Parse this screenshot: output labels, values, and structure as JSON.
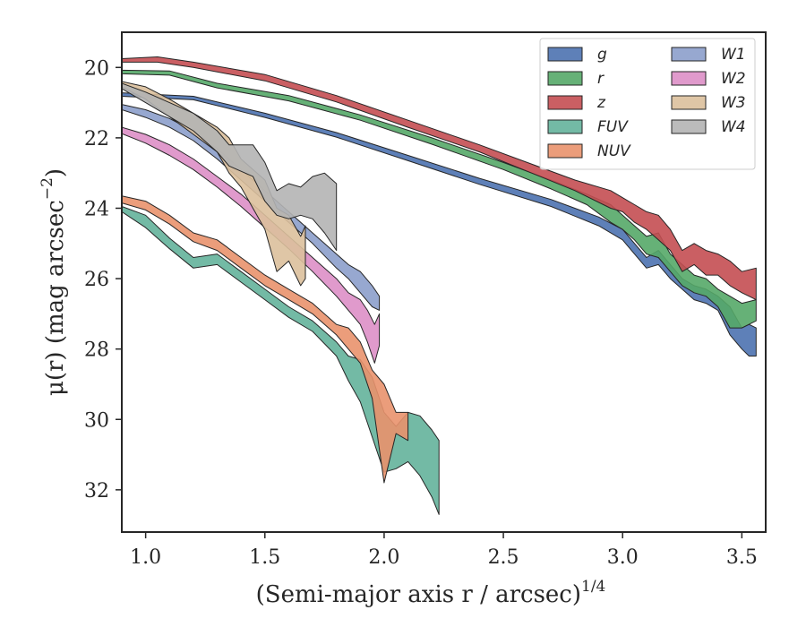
{
  "chart_data": {
    "type": "area",
    "title": "",
    "xlabel": "(Semi-major axis r / arcsec)",
    "xlabel_exponent": "1/4",
    "ylabel": "μ(r) (mag arcsec",
    "ylabel_exponent": "−2",
    "ylabel_close": ")",
    "xlim": [
      0.9,
      3.6
    ],
    "ylim": [
      33.2,
      19.0
    ],
    "y_inverted": true,
    "x_ticks": [
      1.0,
      1.5,
      2.0,
      2.5,
      3.0,
      3.5
    ],
    "x_tick_labels": [
      "1.0",
      "1.5",
      "2.0",
      "2.5",
      "3.0",
      "3.5"
    ],
    "y_ticks": [
      20,
      22,
      24,
      26,
      28,
      30,
      32
    ],
    "y_tick_labels": [
      "20",
      "22",
      "24",
      "26",
      "28",
      "30",
      "32"
    ],
    "grid": false,
    "legend_placement": "top-right",
    "legend_columns": 2,
    "series": [
      {
        "name": "g",
        "color": "#4c72b0",
        "points": [
          [
            0.9,
            20.72,
            20.82
          ],
          [
            1.2,
            20.82,
            20.92
          ],
          [
            1.5,
            21.3,
            21.42
          ],
          [
            1.8,
            21.85,
            21.98
          ],
          [
            2.1,
            22.5,
            22.65
          ],
          [
            2.4,
            23.15,
            23.32
          ],
          [
            2.7,
            23.75,
            23.95
          ],
          [
            2.9,
            24.25,
            24.5
          ],
          [
            3.0,
            24.6,
            24.9
          ],
          [
            3.05,
            25.0,
            25.3
          ],
          [
            3.1,
            25.4,
            25.7
          ],
          [
            3.15,
            25.2,
            25.6
          ],
          [
            3.2,
            25.6,
            26.0
          ],
          [
            3.25,
            26.0,
            26.3
          ],
          [
            3.3,
            26.2,
            26.6
          ],
          [
            3.35,
            26.3,
            26.7
          ],
          [
            3.4,
            26.5,
            26.9
          ],
          [
            3.45,
            26.8,
            27.6
          ],
          [
            3.5,
            27.4,
            28.0
          ],
          [
            3.53,
            27.3,
            28.2
          ],
          [
            3.56,
            27.4,
            28.2
          ]
        ]
      },
      {
        "name": "r",
        "color": "#55a868",
        "points": [
          [
            0.9,
            20.08,
            20.18
          ],
          [
            1.1,
            20.1,
            20.22
          ],
          [
            1.3,
            20.45,
            20.58
          ],
          [
            1.6,
            20.8,
            20.95
          ],
          [
            1.9,
            21.35,
            21.5
          ],
          [
            2.2,
            22.0,
            22.18
          ],
          [
            2.5,
            22.7,
            22.9
          ],
          [
            2.7,
            23.2,
            23.45
          ],
          [
            2.85,
            23.6,
            23.9
          ],
          [
            2.95,
            23.9,
            24.4
          ],
          [
            3.0,
            24.2,
            24.6
          ],
          [
            3.05,
            24.5,
            24.9
          ],
          [
            3.1,
            24.8,
            25.3
          ],
          [
            3.15,
            24.7,
            25.4
          ],
          [
            3.2,
            25.3,
            25.8
          ],
          [
            3.25,
            25.6,
            26.2
          ],
          [
            3.3,
            25.9,
            26.4
          ],
          [
            3.35,
            26.0,
            26.5
          ],
          [
            3.4,
            26.3,
            26.8
          ],
          [
            3.45,
            26.5,
            27.4
          ],
          [
            3.5,
            26.7,
            27.4
          ],
          [
            3.56,
            26.6,
            27.2
          ]
        ]
      },
      {
        "name": "z",
        "color": "#c44e52",
        "points": [
          [
            0.9,
            19.75,
            19.85
          ],
          [
            1.05,
            19.7,
            19.85
          ],
          [
            1.2,
            19.85,
            20.0
          ],
          [
            1.5,
            20.2,
            20.38
          ],
          [
            1.8,
            20.8,
            20.98
          ],
          [
            2.1,
            21.5,
            21.7
          ],
          [
            2.4,
            22.2,
            22.4
          ],
          [
            2.6,
            22.7,
            22.95
          ],
          [
            2.8,
            23.2,
            23.5
          ],
          [
            2.95,
            23.5,
            24.0
          ],
          [
            3.0,
            23.7,
            24.1
          ],
          [
            3.05,
            23.9,
            24.4
          ],
          [
            3.1,
            24.1,
            24.6
          ],
          [
            3.15,
            24.2,
            24.9
          ],
          [
            3.2,
            24.6,
            25.2
          ],
          [
            3.25,
            25.2,
            25.8
          ],
          [
            3.3,
            25.0,
            25.6
          ],
          [
            3.35,
            25.2,
            25.9
          ],
          [
            3.4,
            25.3,
            25.9
          ],
          [
            3.45,
            25.5,
            26.2
          ],
          [
            3.5,
            25.8,
            26.4
          ],
          [
            3.56,
            25.7,
            26.6
          ]
        ]
      },
      {
        "name": "FUV",
        "color": "#64b29b",
        "points": [
          [
            0.9,
            23.95,
            24.1
          ],
          [
            1.0,
            24.2,
            24.55
          ],
          [
            1.1,
            24.85,
            25.15
          ],
          [
            1.2,
            25.4,
            25.7
          ],
          [
            1.3,
            25.3,
            25.6
          ],
          [
            1.4,
            25.8,
            26.1
          ],
          [
            1.5,
            26.3,
            26.6
          ],
          [
            1.6,
            26.8,
            27.1
          ],
          [
            1.7,
            27.2,
            27.5
          ],
          [
            1.8,
            27.8,
            28.2
          ],
          [
            1.85,
            28.2,
            28.9
          ],
          [
            1.9,
            28.3,
            29.5
          ],
          [
            1.95,
            28.8,
            30.5
          ],
          [
            2.0,
            29.8,
            31.5
          ],
          [
            2.05,
            30.2,
            31.4
          ],
          [
            2.1,
            29.8,
            31.2
          ],
          [
            2.15,
            29.9,
            31.6
          ],
          [
            2.2,
            30.3,
            32.2
          ],
          [
            2.23,
            30.6,
            32.7
          ]
        ]
      },
      {
        "name": "NUV",
        "color": "#e9926d",
        "points": [
          [
            0.9,
            23.65,
            23.85
          ],
          [
            1.0,
            23.8,
            24.05
          ],
          [
            1.1,
            24.2,
            24.45
          ],
          [
            1.2,
            24.7,
            24.95
          ],
          [
            1.3,
            24.9,
            25.2
          ],
          [
            1.4,
            25.4,
            25.7
          ],
          [
            1.5,
            25.9,
            26.2
          ],
          [
            1.6,
            26.3,
            26.6
          ],
          [
            1.7,
            26.7,
            27.0
          ],
          [
            1.8,
            27.3,
            27.6
          ],
          [
            1.85,
            27.4,
            28.0
          ],
          [
            1.9,
            27.8,
            28.4
          ],
          [
            1.95,
            28.6,
            29.4
          ],
          [
            2.0,
            29.0,
            31.8
          ],
          [
            2.05,
            29.8,
            30.4
          ],
          [
            2.1,
            29.8,
            30.6
          ]
        ]
      },
      {
        "name": "W1",
        "color": "#8c9fcb",
        "points": [
          [
            0.9,
            21.05,
            21.2
          ],
          [
            1.0,
            21.2,
            21.42
          ],
          [
            1.1,
            21.45,
            21.7
          ],
          [
            1.2,
            21.8,
            22.08
          ],
          [
            1.3,
            22.3,
            22.6
          ],
          [
            1.4,
            22.9,
            23.2
          ],
          [
            1.5,
            23.5,
            23.8
          ],
          [
            1.6,
            24.1,
            24.4
          ],
          [
            1.7,
            24.7,
            25.0
          ],
          [
            1.8,
            25.3,
            25.7
          ],
          [
            1.85,
            25.6,
            26.0
          ],
          [
            1.9,
            25.8,
            26.4
          ],
          [
            1.95,
            26.2,
            26.8
          ],
          [
            1.98,
            26.5,
            26.9
          ]
        ]
      },
      {
        "name": "W2",
        "color": "#dd8fc6",
        "points": [
          [
            0.9,
            21.7,
            21.88
          ],
          [
            1.0,
            21.9,
            22.15
          ],
          [
            1.1,
            22.2,
            22.5
          ],
          [
            1.2,
            22.6,
            22.9
          ],
          [
            1.3,
            23.1,
            23.4
          ],
          [
            1.4,
            23.6,
            23.95
          ],
          [
            1.5,
            24.2,
            24.55
          ],
          [
            1.6,
            24.8,
            25.15
          ],
          [
            1.7,
            25.4,
            25.8
          ],
          [
            1.8,
            26.0,
            26.5
          ],
          [
            1.85,
            26.4,
            26.9
          ],
          [
            1.9,
            26.6,
            27.3
          ],
          [
            1.93,
            26.9,
            27.8
          ],
          [
            1.96,
            27.3,
            28.4
          ],
          [
            1.98,
            27.0,
            27.9
          ]
        ]
      },
      {
        "name": "W3",
        "color": "#dcc09c",
        "points": [
          [
            0.9,
            20.4,
            20.55
          ],
          [
            1.0,
            20.55,
            20.9
          ],
          [
            1.1,
            20.9,
            21.4
          ],
          [
            1.2,
            21.3,
            21.9
          ],
          [
            1.3,
            21.7,
            22.4
          ],
          [
            1.35,
            22.0,
            23.0
          ],
          [
            1.4,
            22.6,
            23.4
          ],
          [
            1.5,
            23.2,
            24.6
          ],
          [
            1.55,
            24.0,
            25.8
          ],
          [
            1.6,
            24.2,
            25.5
          ],
          [
            1.65,
            24.8,
            26.2
          ],
          [
            1.67,
            24.5,
            26.0
          ]
        ]
      },
      {
        "name": "W4",
        "color": "#b4b4b4",
        "points": [
          [
            0.9,
            20.45,
            20.6
          ],
          [
            1.0,
            20.7,
            21.0
          ],
          [
            1.1,
            21.0,
            21.4
          ],
          [
            1.2,
            21.3,
            21.8
          ],
          [
            1.3,
            21.8,
            22.4
          ],
          [
            1.35,
            22.2,
            22.8
          ],
          [
            1.45,
            22.2,
            23.1
          ],
          [
            1.5,
            22.7,
            23.8
          ],
          [
            1.55,
            23.5,
            24.2
          ],
          [
            1.6,
            23.3,
            24.3
          ],
          [
            1.65,
            23.4,
            24.2
          ],
          [
            1.7,
            23.1,
            24.3
          ],
          [
            1.75,
            23.0,
            24.7
          ],
          [
            1.8,
            23.3,
            25.2
          ]
        ]
      }
    ]
  }
}
